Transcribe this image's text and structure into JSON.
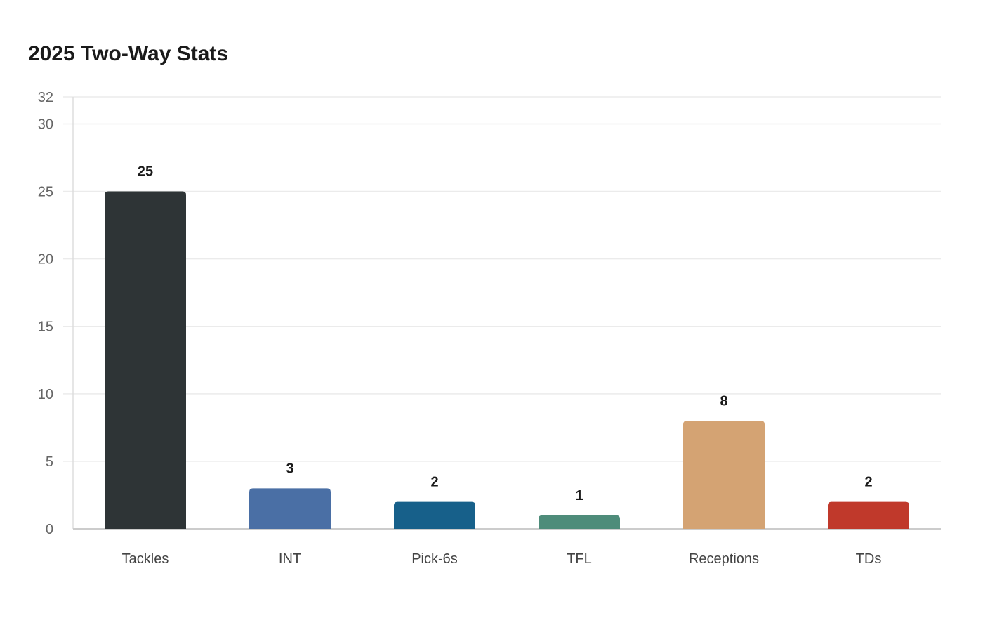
{
  "chart_data": {
    "type": "bar",
    "title": "2025 Two-Way Stats",
    "xlabel": "",
    "ylabel": "",
    "categories": [
      "Tackles",
      "INT",
      "Pick-6s",
      "TFL",
      "Receptions",
      "TDs"
    ],
    "values": [
      25,
      3,
      2,
      1,
      8,
      2
    ],
    "colors": [
      "#2e3436",
      "#4a6fa5",
      "#17608a",
      "#4e8c7a",
      "#d4a373",
      "#c0392b"
    ],
    "ylim": [
      0,
      32
    ],
    "yticks": [
      0,
      5,
      10,
      15,
      20,
      25,
      30,
      32
    ],
    "grid": true,
    "data_labels": true
  }
}
